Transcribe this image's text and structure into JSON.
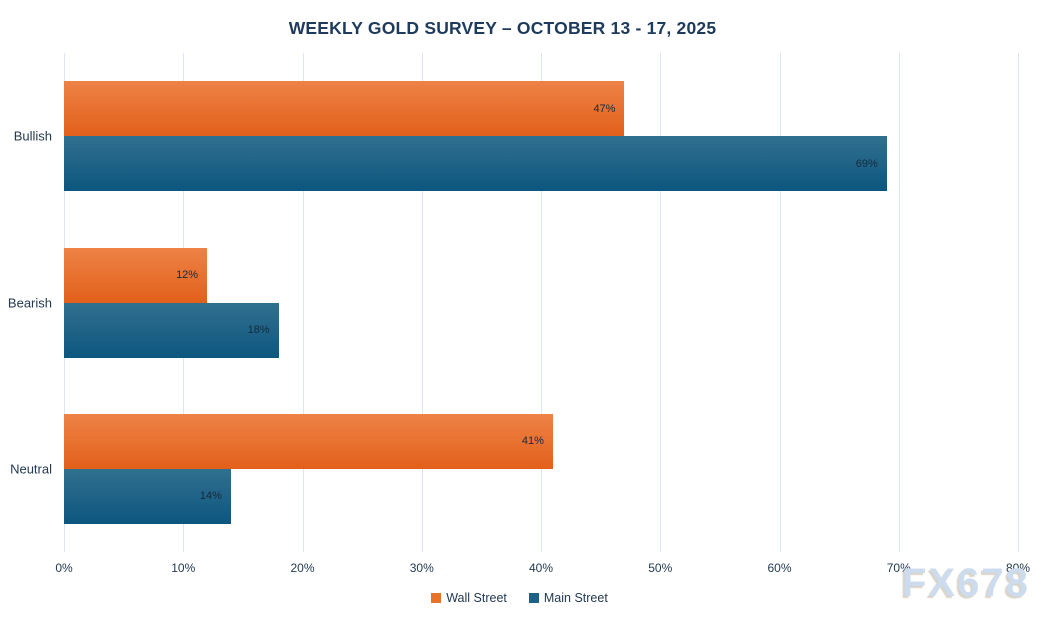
{
  "title": "WEEKLY GOLD SURVEY – OCTOBER 13 - 17, 2025",
  "watermark": "FX678",
  "chart_data": {
    "type": "bar",
    "orientation": "horizontal",
    "title": "WEEKLY GOLD SURVEY – OCTOBER 13 - 17, 2025",
    "categories": [
      "Bullish",
      "Bearish",
      "Neutral"
    ],
    "series": [
      {
        "name": "Wall Street",
        "values": [
          47,
          12,
          41
        ],
        "color_top": "#ee8247",
        "color_bottom": "#e2601a",
        "legend_color": "#e87328"
      },
      {
        "name": "Main Street",
        "values": [
          69,
          18,
          14
        ],
        "color_top": "#31708f",
        "color_bottom": "#0d567f",
        "legend_color": "#1e6288"
      }
    ],
    "value_suffix": "%",
    "xlabel": "",
    "ylabel": "",
    "xlim": [
      0,
      80
    ],
    "x_ticks": [
      "0%",
      "10%",
      "20%",
      "30%",
      "40%",
      "50%",
      "60%",
      "70%",
      "80%"
    ],
    "grid": true,
    "legend_position": "bottom"
  }
}
